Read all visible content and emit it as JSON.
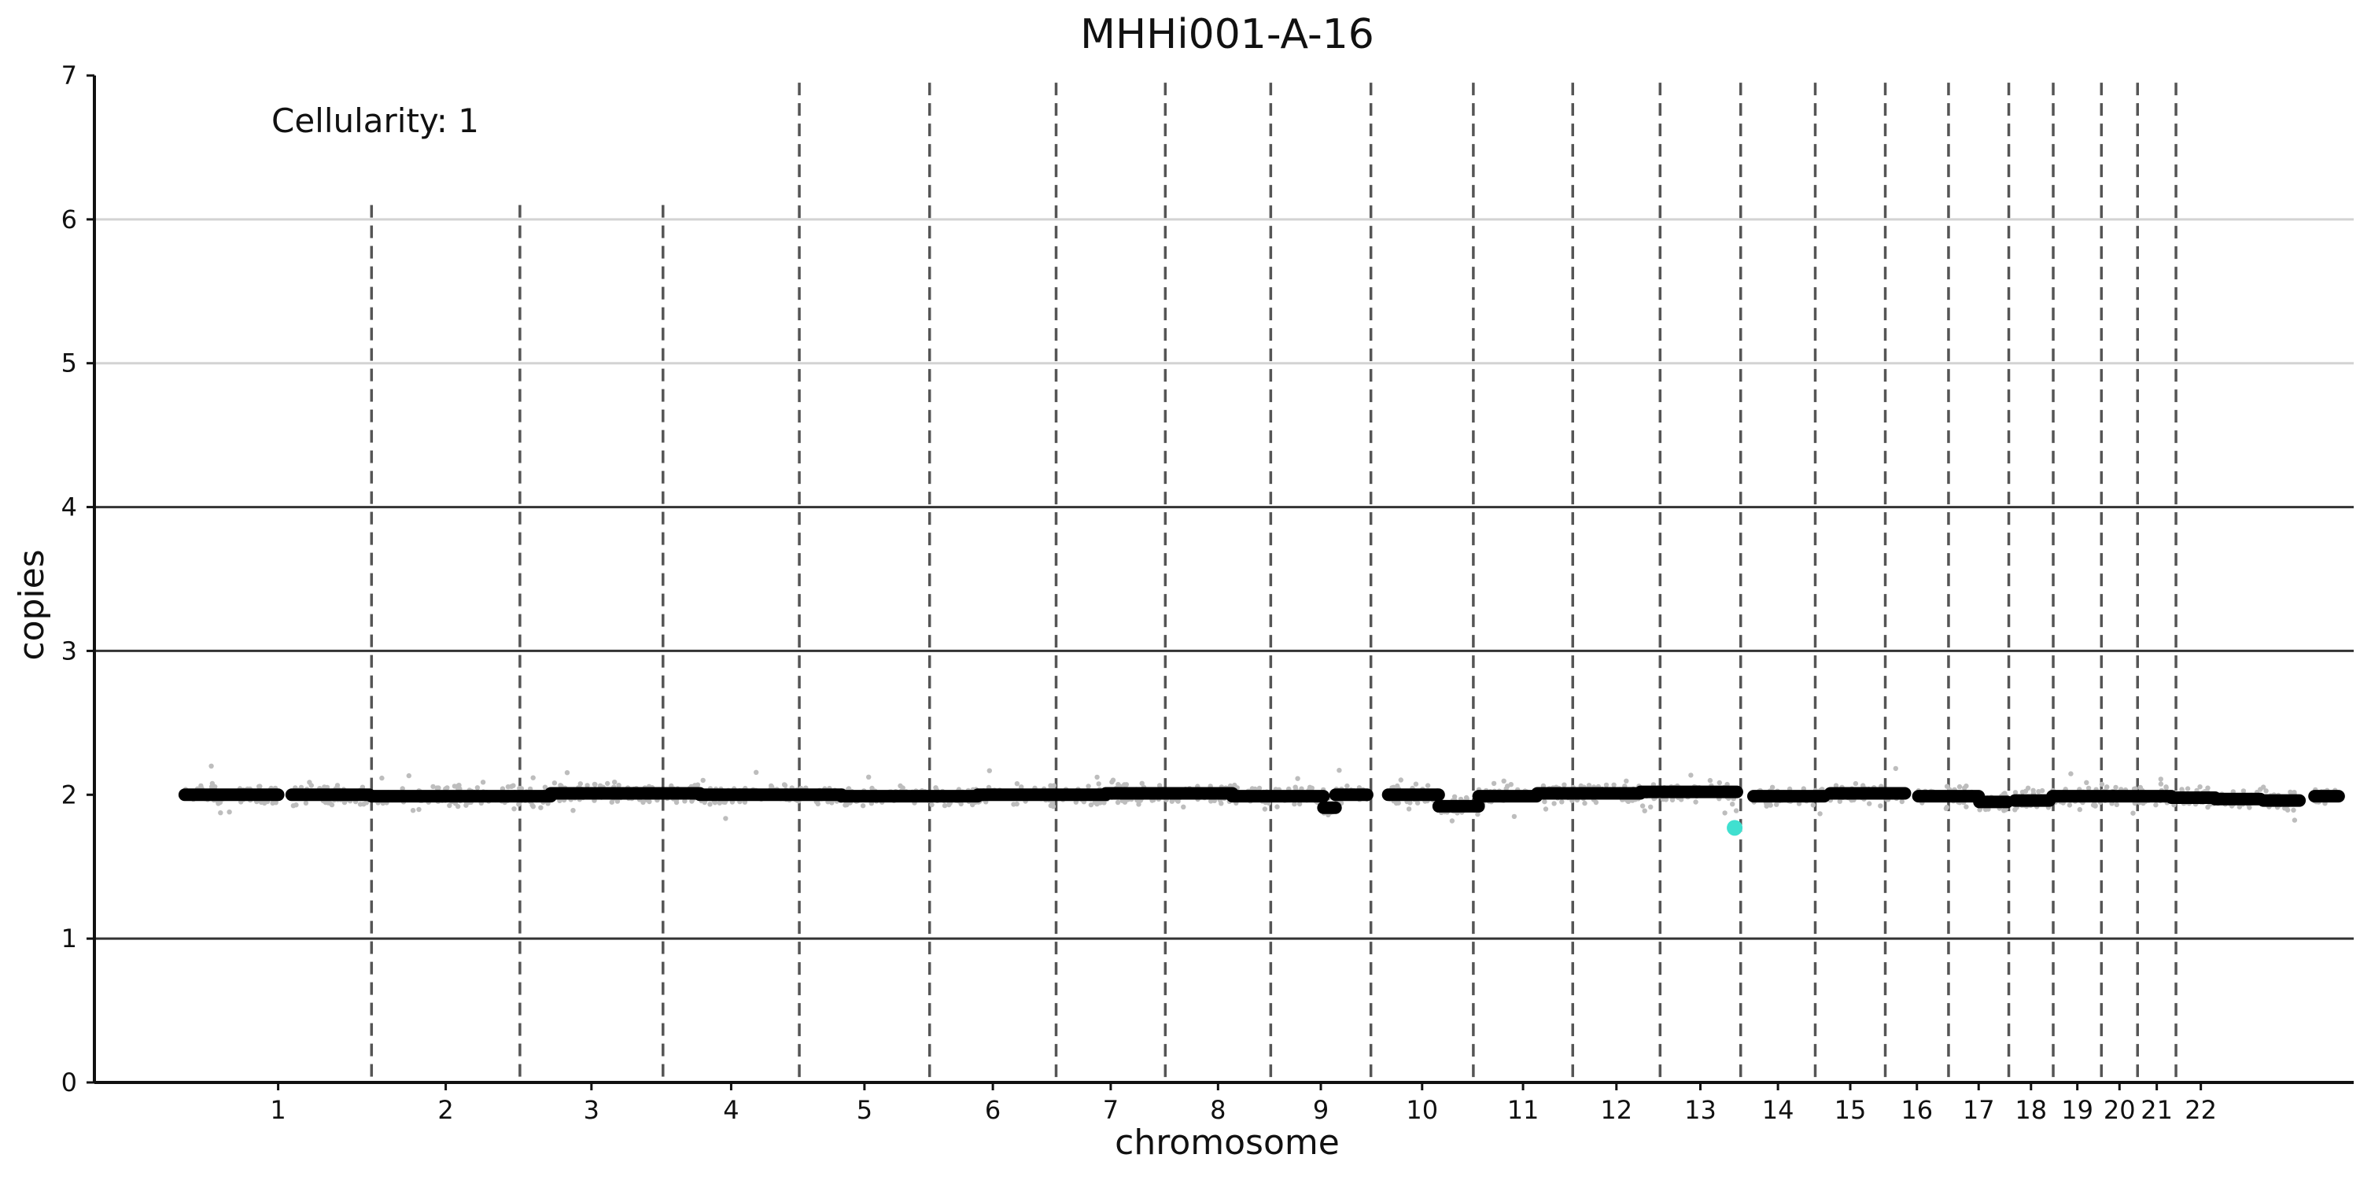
{
  "chart_data": {
    "type": "scatter",
    "title": "MHHi001-A-16",
    "xlabel": "chromosome",
    "ylabel": "copies",
    "annotation": "Cellularity: 1",
    "ylim": [
      0,
      7
    ],
    "yticks": [
      0,
      1,
      2,
      3,
      4,
      5,
      6,
      7
    ],
    "x_domain": [
      0,
      3000
    ],
    "reference_lines": {
      "dark": [
        1,
        3,
        4
      ],
      "light": [
        5,
        6
      ],
      "dark_color": "#333333",
      "light_color": "#d3d3d3"
    },
    "chromosome_labels": [
      "1",
      "2",
      "3",
      "4",
      "5",
      "6",
      "7",
      "8",
      "9",
      "10",
      "11",
      "12",
      "13",
      "14",
      "15",
      "16",
      "17",
      "18",
      "19",
      "20",
      "21",
      "22"
    ],
    "chromosome_boundaries": [
      120,
      368,
      565,
      755,
      936,
      1109,
      1277,
      1422,
      1562,
      1695,
      1831,
      1963,
      2079,
      2186,
      2285,
      2378,
      2462,
      2542,
      2601,
      2665,
      2713,
      2764,
      2830
    ],
    "short_boundary_indices": [
      1,
      2,
      3
    ],
    "segments": [
      {
        "chr": "1",
        "start": 120,
        "end": 244,
        "value": 2.0
      },
      {
        "chr": "1",
        "start": 262,
        "end": 365,
        "value": 2.0
      },
      {
        "chr": "2",
        "start": 368,
        "end": 606,
        "value": 1.99
      },
      {
        "chr": "3",
        "start": 606,
        "end": 804,
        "value": 2.01
      },
      {
        "chr": "4",
        "start": 804,
        "end": 992,
        "value": 2.0
      },
      {
        "chr": "5",
        "start": 992,
        "end": 1173,
        "value": 1.99
      },
      {
        "chr": "6",
        "start": 1173,
        "end": 1343,
        "value": 2.0
      },
      {
        "chr": "7",
        "start": 1343,
        "end": 1511,
        "value": 2.01
      },
      {
        "chr": "8",
        "start": 1511,
        "end": 1632,
        "value": 1.99
      },
      {
        "chr": "8",
        "start": 1632,
        "end": 1648,
        "value": 1.91
      },
      {
        "chr": "8",
        "start": 1648,
        "end": 1690,
        "value": 2.0
      },
      {
        "chr": "9",
        "start": 1718,
        "end": 1785,
        "value": 2.0
      },
      {
        "chr": "10",
        "start": 1785,
        "end": 1838,
        "value": 1.92
      },
      {
        "chr": "10",
        "start": 1838,
        "end": 1915,
        "value": 1.99
      },
      {
        "chr": "11",
        "start": 1916,
        "end": 2053,
        "value": 2.01
      },
      {
        "chr": "12",
        "start": 2053,
        "end": 2181,
        "value": 2.02
      },
      {
        "chr": "13",
        "start": 2203,
        "end": 2297,
        "value": 1.99
      },
      {
        "chr": "14",
        "start": 2305,
        "end": 2404,
        "value": 2.01
      },
      {
        "chr": "15",
        "start": 2422,
        "end": 2502,
        "value": 1.99
      },
      {
        "chr": "16",
        "start": 2503,
        "end": 2540,
        "value": 1.95
      },
      {
        "chr": "16",
        "start": 2550,
        "end": 2596,
        "value": 1.96
      },
      {
        "chr": "17",
        "start": 2600,
        "end": 2681,
        "value": 1.99
      },
      {
        "chr": "18",
        "start": 2681,
        "end": 2758,
        "value": 1.99
      },
      {
        "chr": "19",
        "start": 2758,
        "end": 2816,
        "value": 1.98
      },
      {
        "chr": "20",
        "start": 2816,
        "end": 2876,
        "value": 1.97
      },
      {
        "chr": "21",
        "start": 2880,
        "end": 2928,
        "value": 1.96
      },
      {
        "chr": "22",
        "start": 2948,
        "end": 2980,
        "value": 1.99
      }
    ],
    "highlight_points": [
      {
        "chr": "12",
        "x": 2178,
        "value": 1.77
      }
    ],
    "colors": {
      "segment": "#000000",
      "scatter": "#bdbdbd",
      "highlight": "#40e0d0",
      "boundary": "#555555",
      "axis": "#111111"
    }
  }
}
